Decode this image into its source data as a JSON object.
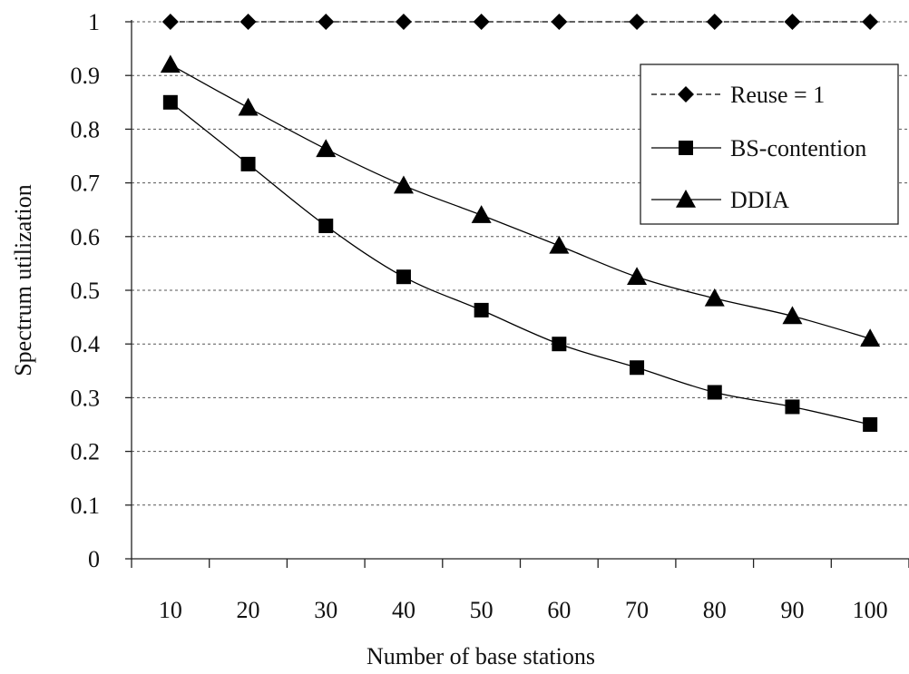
{
  "chart_data": {
    "type": "line",
    "xlabel": "Number of base stations",
    "ylabel": "Spectrum utilization",
    "x": [
      10,
      20,
      30,
      40,
      50,
      60,
      70,
      80,
      90,
      100
    ],
    "ylim": [
      0,
      1
    ],
    "yticks": [
      "0",
      "0.1",
      "0.2",
      "0.3",
      "0.4",
      "0.5",
      "0.6",
      "0.7",
      "0.8",
      "0.9",
      "1"
    ],
    "grid": true,
    "legend_position": "top-right",
    "series": [
      {
        "name": "Reuse = 1",
        "marker": "diamond",
        "line_style": "dashed",
        "color": "#000000",
        "values": [
          1,
          1,
          1,
          1,
          1,
          1,
          1,
          1,
          1,
          1
        ]
      },
      {
        "name": "BS-contention",
        "marker": "square",
        "line_style": "solid",
        "color": "#000000",
        "values": [
          0.85,
          0.735,
          0.62,
          0.525,
          0.463,
          0.4,
          0.356,
          0.31,
          0.283,
          0.25
        ]
      },
      {
        "name": "DDIA",
        "marker": "triangle",
        "line_style": "solid",
        "color": "#000000",
        "values": [
          0.92,
          0.84,
          0.763,
          0.695,
          0.64,
          0.583,
          0.525,
          0.485,
          0.452,
          0.41
        ]
      }
    ]
  }
}
